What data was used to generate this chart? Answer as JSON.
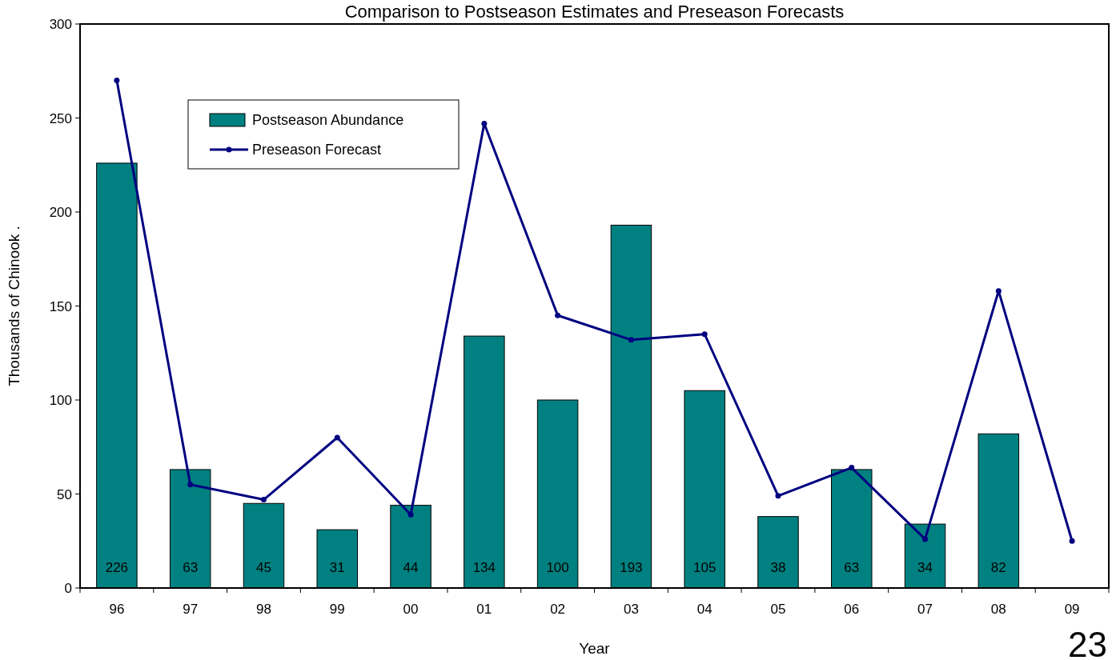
{
  "chart_data": {
    "type": "bar",
    "title": "Comparison to Postseason Estimates and Preseason Forecasts",
    "xlabel": "Year",
    "ylabel": "Thousands of Chinook   .",
    "categories": [
      "96",
      "97",
      "98",
      "99",
      "00",
      "01",
      "02",
      "03",
      "04",
      "05",
      "06",
      "07",
      "08",
      "09"
    ],
    "series": [
      {
        "name": "Postseason Abundance",
        "color": "#008080",
        "values": [
          226,
          63,
          45,
          31,
          44,
          134,
          100,
          193,
          105,
          38,
          63,
          34,
          82,
          null
        ],
        "value_labels": [
          "226",
          "63",
          "45",
          "31",
          "44",
          "134",
          "100",
          "193",
          "105",
          "38",
          "63",
          "34",
          "82",
          null
        ]
      },
      {
        "name": "Preseason Forecast",
        "type": "line",
        "color": "#000080",
        "marker": "circle",
        "values": [
          270,
          55,
          47,
          80,
          39,
          247,
          145,
          132,
          135,
          49,
          64,
          26,
          158,
          25
        ]
      }
    ],
    "ylim": [
      0,
      300
    ],
    "yticks": [
      0,
      50,
      100,
      150,
      200,
      250,
      300
    ],
    "grid": false,
    "legend": "top left",
    "annotations": [
      "23"
    ]
  }
}
